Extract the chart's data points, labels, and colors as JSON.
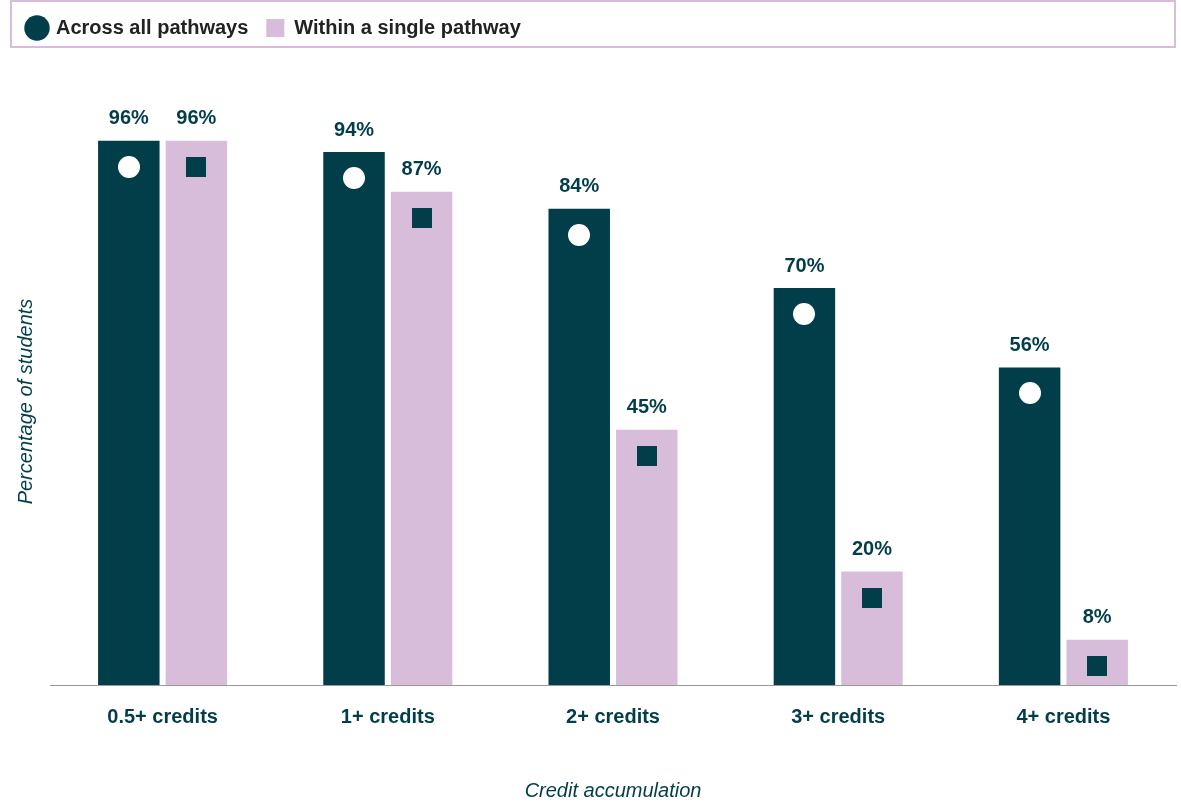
{
  "chart_data": {
    "type": "bar",
    "xlabel": "Credit accumulation",
    "ylabel": "Percentage of students",
    "categories": [
      "0.5+ credits",
      "1+ credits",
      "2+ credits",
      "3+ credits",
      "4+ credits"
    ],
    "series": [
      {
        "name": "Across all pathways",
        "color": "#023d4a",
        "values": [
          96,
          94,
          84,
          70,
          56
        ],
        "value_labels": [
          "96%",
          "94%",
          "84%",
          "70%",
          "56%"
        ]
      },
      {
        "name": "Within a single pathway",
        "color": "#d8bddb",
        "values": [
          96,
          87,
          45,
          20,
          8
        ],
        "value_labels": [
          "96%",
          "87%",
          "45%",
          "20%",
          "8%"
        ]
      }
    ],
    "legend": "top left",
    "grid": false
  }
}
